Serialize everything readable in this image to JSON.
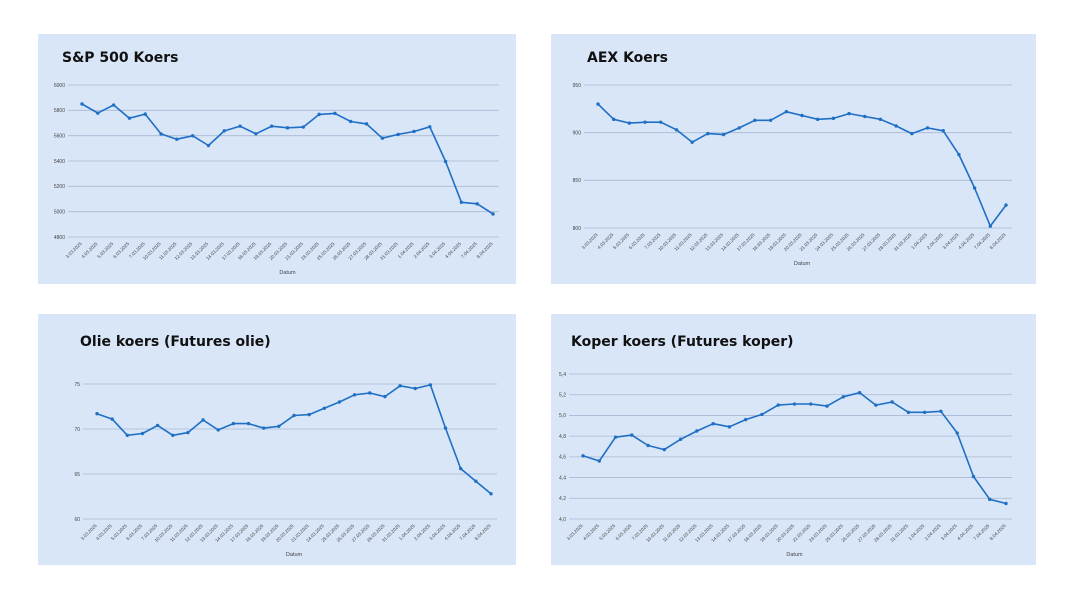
{
  "chart_data": [
    {
      "type": "line",
      "title": "S&P 500 Koers",
      "xlabel": "Datum",
      "ylabel": "",
      "ylim": [
        4800,
        6000
      ],
      "yticks": [
        "4800",
        "5000",
        "5200",
        "5400",
        "5600",
        "5800",
        "6000"
      ],
      "grid": true,
      "color": "#1f6fc5",
      "categories": [
        "3.03.2025",
        "4.03.2025",
        "5.03.2025",
        "6.03.2025",
        "7.03.2025",
        "10.03.2025",
        "11.03.2025",
        "12.03.2025",
        "13.03.2025",
        "14.03.2025",
        "17.03.2025",
        "18.03.2025",
        "19.03.2025",
        "20.03.2025",
        "21.03.2025",
        "24.03.2025",
        "25.03.2025",
        "26.03.2025",
        "27.03.2025",
        "28.03.2025",
        "31.03.2025",
        "1.04.2025",
        "2.04.2025",
        "3.04.2025",
        "4.04.2025",
        "7.04.2025",
        "8.04.2025"
      ],
      "values": [
        5850,
        5778,
        5842,
        5738,
        5770,
        5614,
        5572,
        5599,
        5522,
        5638,
        5675,
        5615,
        5675,
        5662,
        5668,
        5768,
        5776,
        5712,
        5693,
        5580,
        5610,
        5633,
        5670,
        5396,
        5074,
        5062,
        4982
      ]
    },
    {
      "type": "line",
      "title": "AEX Koers",
      "xlabel": "Datum",
      "ylabel": "",
      "ylim": [
        800,
        950
      ],
      "yticks": [
        "800",
        "850",
        "900",
        "950"
      ],
      "grid": true,
      "color": "#1f6fc5",
      "categories": [
        "3.03.2025",
        "4.03.2025",
        "5.03.2025",
        "6.03.2025",
        "7.03.2025",
        "10.03.2025",
        "11.03.2025",
        "12.03.2025",
        "13.03.2025",
        "14.03.2025",
        "17.03.2025",
        "18.03.2025",
        "19.03.2025",
        "20.03.2025",
        "21.03.2025",
        "24.03.2025",
        "25.03.2025",
        "26.03.2025",
        "27.03.2025",
        "28.03.2025",
        "31.03.2025",
        "1.04.2025",
        "2.04.2025",
        "3.04.2025",
        "4.04.2025",
        "7.04.2025",
        "8.04.2025"
      ],
      "values": [
        930,
        914,
        910,
        911,
        911,
        903,
        890,
        899,
        898,
        905,
        913,
        913,
        922,
        918,
        914,
        915,
        920,
        917,
        914,
        907,
        899,
        905,
        902,
        877,
        842,
        802,
        824
      ]
    },
    {
      "type": "line",
      "title": "Olie koers (Futures olie)",
      "xlabel": "Datum",
      "ylabel": "",
      "ylim": [
        60,
        75
      ],
      "yticks": [
        "60",
        "65",
        "70",
        "75"
      ],
      "grid": true,
      "color": "#1f6fc5",
      "categories": [
        "3.03.2025",
        "4.03.2025",
        "5.03.2025",
        "6.03.2025",
        "7.03.2025",
        "10.03.2025",
        "11.03.2025",
        "12.03.2025",
        "13.03.2025",
        "14.03.2025",
        "17.03.2025",
        "18.03.2025",
        "19.03.2025",
        "20.03.2025",
        "21.03.2025",
        "24.03.2025",
        "25.03.2025",
        "26.03.2025",
        "27.03.2025",
        "28.03.2025",
        "31.03.2025",
        "1.04.2025",
        "2.04.2025",
        "3.04.2025",
        "4.04.2025",
        "7.04.2025",
        "8.04.2025"
      ],
      "values": [
        71.7,
        71.1,
        69.3,
        69.5,
        70.4,
        69.3,
        69.6,
        71.0,
        69.9,
        70.6,
        70.6,
        70.1,
        70.3,
        71.5,
        71.6,
        72.3,
        73.0,
        73.8,
        74.0,
        73.6,
        74.8,
        74.5,
        74.9,
        70.1,
        65.6,
        64.2,
        62.8
      ]
    },
    {
      "type": "line",
      "title": "Koper koers (Futures koper)",
      "xlabel": "Datum",
      "ylabel": "",
      "ylim": [
        4.0,
        5.4
      ],
      "yticks": [
        "4,0",
        "4,2",
        "4,4",
        "4,6",
        "4,8",
        "5,0",
        "5,2",
        "5,4"
      ],
      "grid": true,
      "color": "#1f6fc5",
      "categories": [
        "3.03.2025",
        "4.03.2025",
        "5.03.2025",
        "6.03.2025",
        "7.03.2025",
        "10.03.2025",
        "11.03.2025",
        "12.03.2025",
        "13.03.2025",
        "14.03.2025",
        "17.03.2025",
        "18.03.2025",
        "19.03.2025",
        "20.03.2025",
        "21.03.2025",
        "24.03.2025",
        "25.03.2025",
        "26.03.2025",
        "27.03.2025",
        "28.03.2025",
        "31.03.2025",
        "1.04.2025",
        "2.04.2025",
        "3.04.2025",
        "4.04.2025",
        "7.04.2025",
        "8.04.2025"
      ],
      "values": [
        4.61,
        4.56,
        4.79,
        4.81,
        4.71,
        4.67,
        4.77,
        4.85,
        4.92,
        4.89,
        4.96,
        5.01,
        5.1,
        5.11,
        5.11,
        5.09,
        5.18,
        5.22,
        5.1,
        5.13,
        5.03,
        5.03,
        5.04,
        4.83,
        4.41,
        4.19,
        4.15
      ]
    }
  ]
}
